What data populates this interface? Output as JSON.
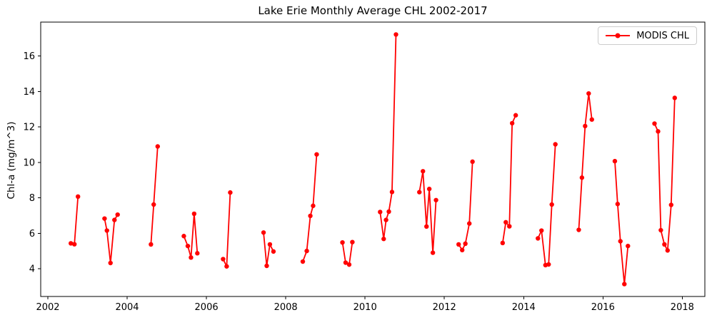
{
  "figure": {
    "background_color": "#ffffff",
    "accent_color": "#ff0000"
  },
  "chart_data": {
    "type": "line",
    "title": "Lake Erie Monthly Average CHL 2002-2017",
    "xlabel": "",
    "ylabel": "Chl-a (mg/m^3)",
    "xlim": [
      2001.82,
      2018.57
    ],
    "ylim": [
      2.43,
      17.92
    ],
    "x_ticks": [
      2002,
      2004,
      2006,
      2008,
      2010,
      2012,
      2014,
      2016,
      2018
    ],
    "y_ticks": [
      4,
      6,
      8,
      10,
      12,
      14,
      16
    ],
    "grid": false,
    "legend": {
      "label": "MODIS CHL",
      "position": "upper right"
    },
    "series": [
      {
        "name": "MODIS CHL",
        "color": "#ff0000",
        "marker": "circle",
        "segments": [
          [
            [
              2002.58,
              5.43
            ],
            [
              2002.67,
              5.38
            ],
            [
              2002.76,
              8.07
            ]
          ],
          [
            [
              2003.43,
              6.83
            ],
            [
              2003.49,
              6.15
            ],
            [
              2003.58,
              4.32
            ],
            [
              2003.68,
              6.75
            ],
            [
              2003.76,
              7.05
            ]
          ],
          [
            [
              2004.6,
              5.37
            ],
            [
              2004.67,
              7.62
            ],
            [
              2004.77,
              10.9
            ]
          ],
          [
            [
              2005.43,
              5.84
            ],
            [
              2005.53,
              5.28
            ],
            [
              2005.61,
              4.63
            ],
            [
              2005.69,
              7.1
            ],
            [
              2005.77,
              4.87
            ]
          ],
          [
            [
              2006.42,
              4.54
            ],
            [
              2006.51,
              4.13
            ],
            [
              2006.6,
              8.3
            ]
          ],
          [
            [
              2007.44,
              6.04
            ],
            [
              2007.52,
              4.16
            ],
            [
              2007.6,
              5.37
            ],
            [
              2007.69,
              4.97
            ]
          ],
          [
            [
              2008.43,
              4.4
            ],
            [
              2008.53,
              5.0
            ],
            [
              2008.62,
              6.98
            ],
            [
              2008.69,
              7.55
            ],
            [
              2008.78,
              10.45
            ]
          ],
          [
            [
              2009.43,
              5.48
            ],
            [
              2009.51,
              4.34
            ],
            [
              2009.6,
              4.23
            ],
            [
              2009.68,
              5.5
            ]
          ],
          [
            [
              2010.38,
              7.2
            ],
            [
              2010.47,
              5.68
            ],
            [
              2010.53,
              6.75
            ],
            [
              2010.6,
              7.22
            ],
            [
              2010.68,
              8.33
            ],
            [
              2010.78,
              17.22
            ]
          ],
          [
            [
              2011.37,
              8.32
            ],
            [
              2011.46,
              9.5
            ],
            [
              2011.55,
              6.38
            ],
            [
              2011.62,
              8.5
            ],
            [
              2011.71,
              4.9
            ],
            [
              2011.79,
              7.87
            ]
          ],
          [
            [
              2012.36,
              5.37
            ],
            [
              2012.45,
              5.05
            ],
            [
              2012.53,
              5.41
            ],
            [
              2012.63,
              6.55
            ],
            [
              2012.71,
              10.04
            ]
          ],
          [
            [
              2013.47,
              5.45
            ],
            [
              2013.55,
              6.62
            ],
            [
              2013.64,
              6.39
            ],
            [
              2013.71,
              12.21
            ],
            [
              2013.8,
              12.66
            ]
          ],
          [
            [
              2014.36,
              5.71
            ],
            [
              2014.45,
              6.15
            ],
            [
              2014.55,
              4.2
            ],
            [
              2014.63,
              4.24
            ],
            [
              2014.71,
              7.62
            ],
            [
              2014.8,
              11.02
            ]
          ],
          [
            [
              2015.39,
              6.19
            ],
            [
              2015.47,
              9.14
            ],
            [
              2015.55,
              12.05
            ],
            [
              2015.64,
              13.89
            ],
            [
              2015.72,
              12.42
            ]
          ],
          [
            [
              2016.3,
              10.07
            ],
            [
              2016.37,
              7.65
            ],
            [
              2016.44,
              5.55
            ],
            [
              2016.54,
              3.13
            ],
            [
              2016.63,
              5.28
            ]
          ],
          [
            [
              2017.3,
              12.19
            ],
            [
              2017.39,
              11.75
            ],
            [
              2017.46,
              6.17
            ],
            [
              2017.55,
              5.37
            ],
            [
              2017.63,
              5.03
            ],
            [
              2017.72,
              7.6
            ],
            [
              2017.81,
              13.64
            ]
          ]
        ]
      }
    ]
  }
}
